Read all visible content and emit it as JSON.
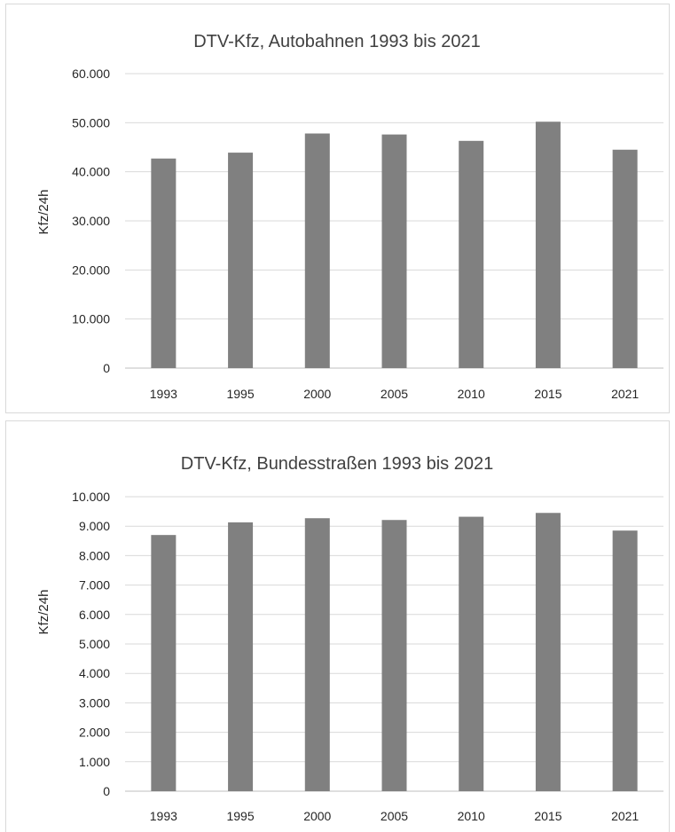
{
  "chart_data": [
    {
      "type": "bar",
      "title": "DTV-Kfz, Autobahnen 1993 bis 2021",
      "xlabel": "",
      "ylabel": "Kfz/24h",
      "categories": [
        "1993",
        "1995",
        "2000",
        "2005",
        "2010",
        "2015",
        "2021"
      ],
      "values": [
        42700,
        43900,
        47800,
        47600,
        46300,
        50200,
        44500
      ],
      "ylim": [
        0,
        60000
      ],
      "yticks": [
        "0",
        "10.000",
        "20.000",
        "30.000",
        "40.000",
        "50.000",
        "60.000"
      ],
      "grid": true,
      "bar_color": "#808080"
    },
    {
      "type": "bar",
      "title": "DTV-Kfz, Bundesstraßen 1993 bis 2021",
      "xlabel": "",
      "ylabel": "Kfz/24h",
      "categories": [
        "1993",
        "1995",
        "2000",
        "2005",
        "2010",
        "2015",
        "2021"
      ],
      "values": [
        8700,
        9130,
        9270,
        9210,
        9320,
        9450,
        8850
      ],
      "ylim": [
        0,
        10000
      ],
      "yticks": [
        "0",
        "1.000",
        "2.000",
        "3.000",
        "4.000",
        "5.000",
        "6.000",
        "7.000",
        "8.000",
        "9.000",
        "10.000"
      ],
      "grid": true,
      "bar_color": "#808080"
    }
  ]
}
